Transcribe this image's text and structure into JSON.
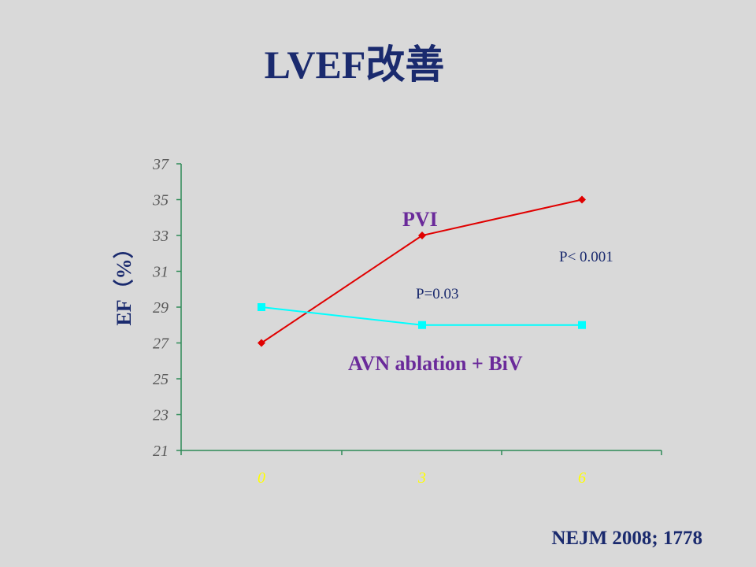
{
  "slide": {
    "title": "LVEF改善",
    "citation": "NEJM 2008; 1778"
  },
  "chart_data": {
    "type": "line",
    "title": "LVEF改善",
    "xlabel": "",
    "ylabel": "EF（%）",
    "categories": [
      "0",
      "3",
      "6"
    ],
    "ylim": [
      21,
      37
    ],
    "yticks": [
      21,
      23,
      25,
      27,
      29,
      31,
      33,
      35,
      37
    ],
    "grid": false,
    "series": [
      {
        "name": "PVI",
        "values": [
          27,
          33,
          35
        ],
        "color": "#e00000",
        "marker": "diamond"
      },
      {
        "name": "AVN ablation + BiV",
        "values": [
          29,
          28,
          28
        ],
        "color": "#00ffff",
        "marker": "square"
      }
    ],
    "annotations": [
      {
        "text": "P< 0.001"
      },
      {
        "text": "P=0.03"
      }
    ],
    "axis_color": "#2e8b57"
  }
}
